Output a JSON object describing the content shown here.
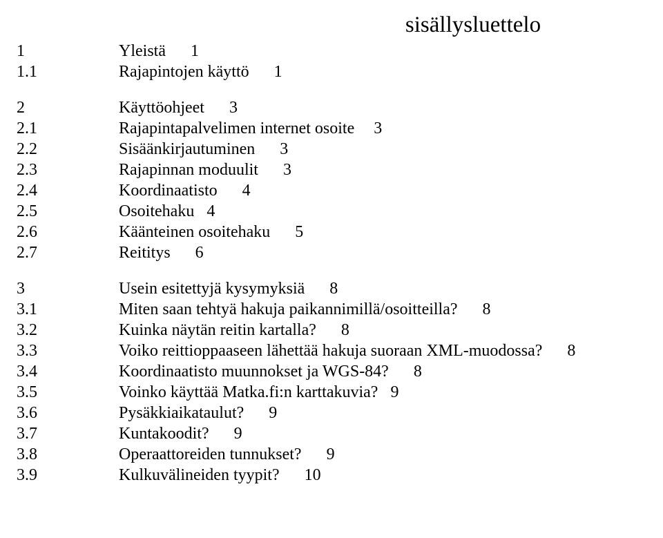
{
  "title": "sisällysluettelo",
  "blocks": [
    {
      "rows": [
        {
          "num": "1",
          "label": "Yleistä",
          "page": "1",
          "pageClass": "wide"
        },
        {
          "num": "1.1",
          "label": "Rajapintojen käyttö",
          "page": "1",
          "pageClass": "wide"
        }
      ]
    },
    {
      "rows": [
        {
          "num": "2",
          "label": "Käyttöohjeet",
          "page": "3",
          "pageClass": "wide"
        },
        {
          "num": "2.1",
          "label": "Rajapintapalvelimen internet osoite",
          "page": "3",
          "pageClass": ""
        },
        {
          "num": "2.2",
          "label": "Sisäänkirjautuminen",
          "page": "3",
          "pageClass": "wide"
        },
        {
          "num": "2.3",
          "label": "Rajapinnan moduulit",
          "page": "3",
          "pageClass": "wide"
        },
        {
          "num": "2.4",
          "label": "Koordinaatisto",
          "page": "4",
          "pageClass": "wide"
        },
        {
          "num": "2.5",
          "label": "Osoitehaku",
          "page": "4",
          "pageClass": "tight"
        },
        {
          "num": "2.6",
          "label": "Käänteinen osoitehaku",
          "page": "5",
          "pageClass": "wide"
        },
        {
          "num": "2.7",
          "label": "Reititys",
          "page": "6",
          "pageClass": "wide"
        }
      ]
    },
    {
      "rows": [
        {
          "num": "3",
          "label": "Usein esitettyjä kysymyksiä",
          "page": "8",
          "pageClass": "wide"
        },
        {
          "num": "3.1",
          "label": "Miten saan tehtyä hakuja paikannimillä/osoitteilla?",
          "page": "8",
          "pageClass": "wide"
        },
        {
          "num": "3.2",
          "label": "Kuinka näytän reitin kartalla?",
          "page": "8",
          "pageClass": "wide"
        },
        {
          "num": "3.3",
          "label": "Voiko reittioppaaseen lähettää hakuja suoraan XML-muodossa?",
          "page": "8",
          "pageClass": "wide"
        },
        {
          "num": "3.4",
          "label": "Koordinaatisto muunnokset ja WGS-84?",
          "page": "8",
          "pageClass": "wide"
        },
        {
          "num": "3.5",
          "label": "Voinko käyttää Matka.fi:n karttakuvia?",
          "page": "9",
          "pageClass": "tight"
        },
        {
          "num": "3.6",
          "label": "Pysäkkiaikataulut?",
          "page": "9",
          "pageClass": "wide"
        },
        {
          "num": "3.7",
          "label": "Kuntakoodit?",
          "page": "9",
          "pageClass": "wide"
        },
        {
          "num": "3.8",
          "label": "Operaattoreiden tunnukset?",
          "page": "9",
          "pageClass": "wide"
        },
        {
          "num": "3.9",
          "label": "Kulkuvälineiden tyypit?",
          "page": "10",
          "pageClass": "wide"
        }
      ]
    }
  ]
}
